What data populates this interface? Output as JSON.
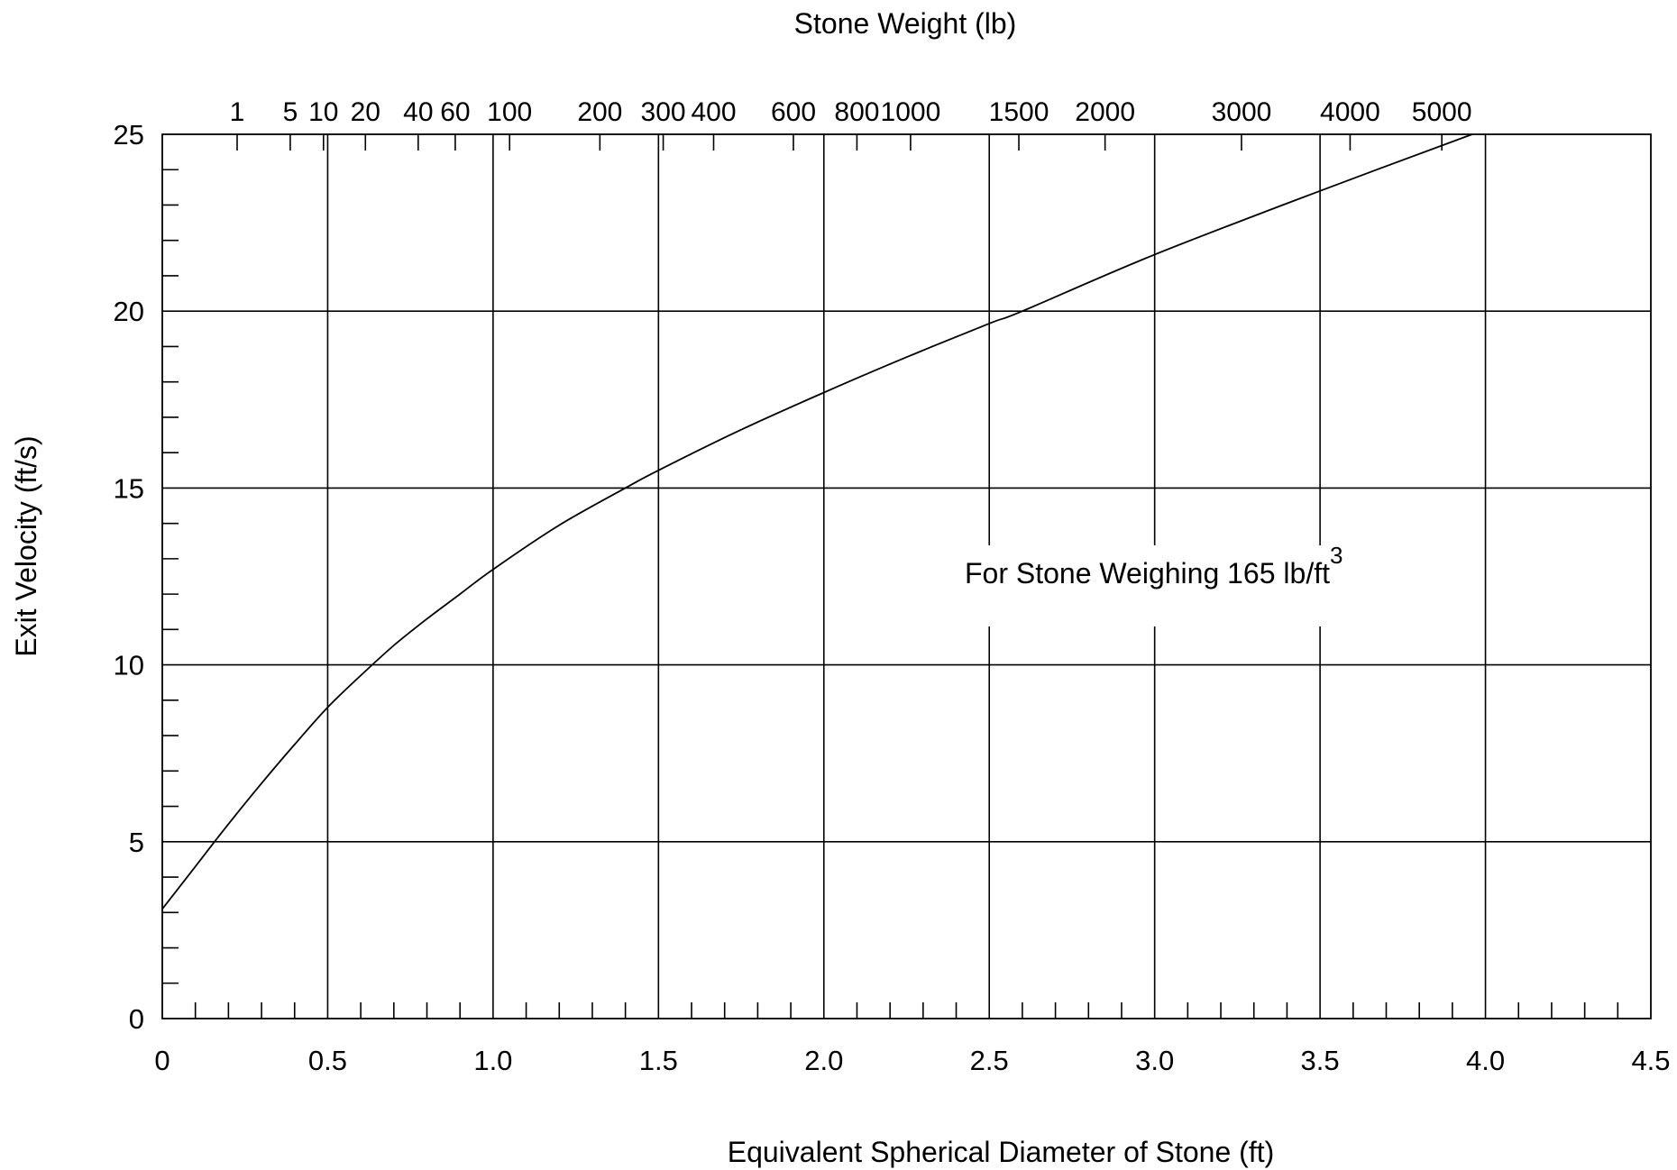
{
  "chart_data": {
    "type": "line",
    "title": "",
    "xlabel": "Equivalent  Spherical Diameter of Stone   (ft)",
    "ylabel": "Exit Velocity (ft/s)",
    "top_axis_label": "Stone Weight  (lb)",
    "xlim": [
      0,
      4.5
    ],
    "ylim": [
      0,
      25
    ],
    "x_ticks": [
      "0",
      "0.5",
      "1.0",
      "1.5",
      "2.0",
      "2.5",
      "3.0",
      "3.5",
      "4.0",
      "4.5"
    ],
    "y_ticks": [
      "0",
      "5",
      "10",
      "15",
      "20",
      "25"
    ],
    "x_major_step": 0.5,
    "x_minor_step": 0.1,
    "y_major_step": 5,
    "y_minor_step": 1,
    "grid": true,
    "top_axis": {
      "label": "Stone Weight  (lb)",
      "unit_weight_lb_ft3": 165,
      "ticks": [
        {
          "label": "1",
          "value": 1
        },
        {
          "label": "5",
          "value": 5
        },
        {
          "label": "10",
          "value": 10
        },
        {
          "label": "20",
          "value": 20
        },
        {
          "label": "40",
          "value": 40
        },
        {
          "label": "60",
          "value": 60
        },
        {
          "label": "100",
          "value": 100
        },
        {
          "label": "200",
          "value": 200
        },
        {
          "label": "300",
          "value": 300
        },
        {
          "label": "400",
          "value": 400
        },
        {
          "label": "600",
          "value": 600
        },
        {
          "label": "800",
          "value": 800
        },
        {
          "label": "1000",
          "value": 1000
        },
        {
          "label": "1500",
          "value": 1500
        },
        {
          "label": "2000",
          "value": 2000
        },
        {
          "label": "3000",
          "value": 3000
        },
        {
          "label": "4000",
          "value": 4000
        },
        {
          "label": "5000",
          "value": 5000
        }
      ]
    },
    "annotation": {
      "text": "For Stone Weighing 165 lb/ft",
      "superscript": "3"
    },
    "series": [
      {
        "x": [
          0,
          0.1,
          0.2,
          0.3,
          0.4,
          0.5,
          0.6,
          0.7,
          0.8,
          0.9,
          1.0,
          1.2,
          1.4,
          1.5,
          1.75,
          2.0,
          2.25,
          2.5,
          2.6,
          3.0,
          3.5,
          3.96
        ],
        "values": [
          3.1,
          4.3,
          5.5,
          6.65,
          7.75,
          8.8,
          9.7,
          10.55,
          11.3,
          12.0,
          12.7,
          13.95,
          15.0,
          15.5,
          16.65,
          17.7,
          18.7,
          19.65,
          20.0,
          21.6,
          23.4,
          25.0
        ]
      }
    ]
  }
}
